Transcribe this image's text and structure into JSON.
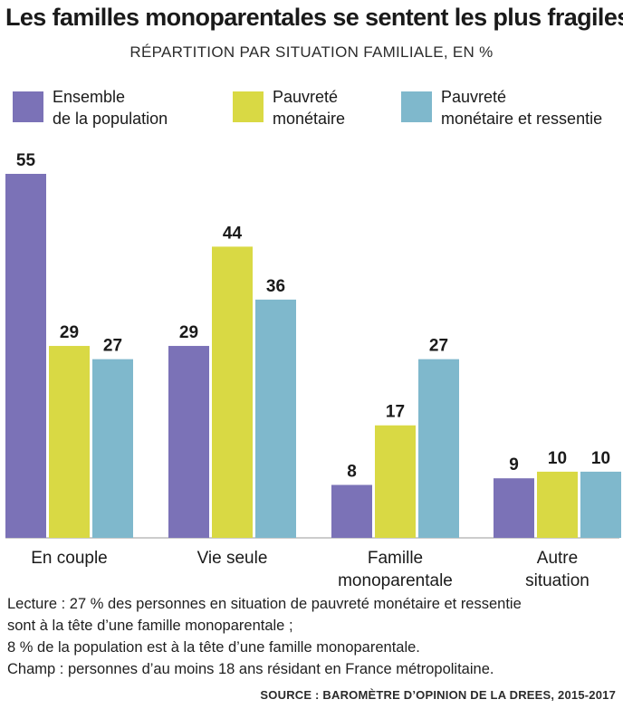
{
  "chart_data": {
    "type": "bar",
    "title": "Les familles monoparentales se sentent les plus fragiles",
    "subtitle": "RÉPARTITION PAR SITUATION FAMILIALE, EN %",
    "categories": [
      [
        "En couple"
      ],
      [
        "Vie seule"
      ],
      [
        "Famille",
        "monoparentale"
      ],
      [
        "Autre",
        "situation"
      ]
    ],
    "series": [
      {
        "name": "Ensemble\nde la population",
        "color": "#7b72b7",
        "values": [
          55,
          29,
          8,
          9
        ]
      },
      {
        "name": "Pauvreté\nmonétaire",
        "color": "#d9d944",
        "values": [
          29,
          44,
          17,
          10
        ]
      },
      {
        "name": "Pauvreté\nmonétaire et ressentie",
        "color": "#7fb8cc",
        "values": [
          27,
          36,
          27,
          10
        ]
      }
    ],
    "ylim": [
      0,
      55
    ],
    "grid": false,
    "legend": "top"
  },
  "footnote": [
    "Lecture : 27 % des personnes en situation de pauvreté monétaire et ressentie",
    "sont à la tête d’une famille monoparentale ;",
    "8 % de la population est à la tête d’une famille monoparentale.",
    "Champ : personnes d’au moins 18 ans résidant en France métropolitaine."
  ],
  "source": "SOURCE : BAROMÈTRE D’OPINION DE LA DREES, 2015-2017"
}
